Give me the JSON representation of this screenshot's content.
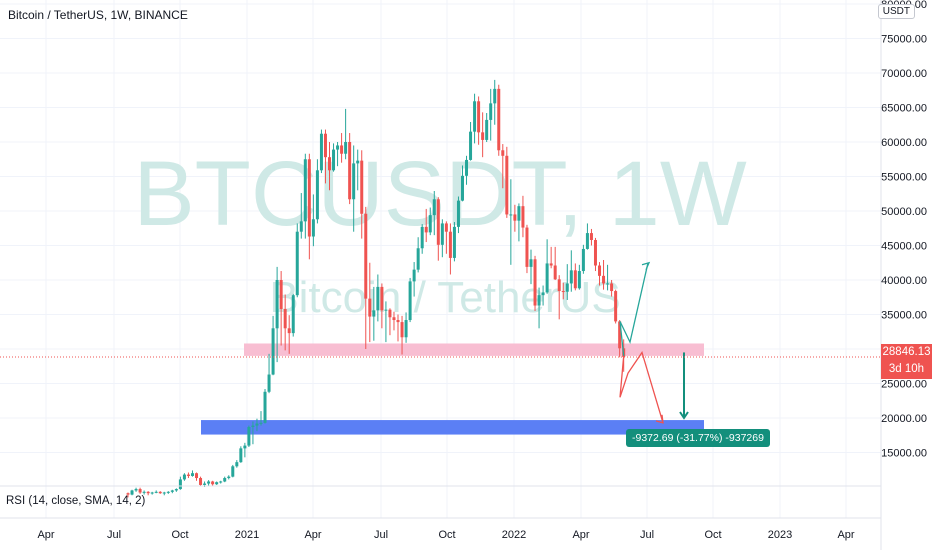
{
  "header": {
    "title": "Bitcoin / TetherUS, 1W, BINANCE",
    "currency": "USDT"
  },
  "watermark": {
    "big": "BTCUSDT, 1W",
    "small": "Bitcoin / TetherUS"
  },
  "indicator": {
    "label": "RSI (14, close, SMA, 14, 2)"
  },
  "price_tag": {
    "price": "28846.13",
    "countdown": "3d 10h"
  },
  "measure_label": "-9372.69 (-31.77%) -937269",
  "colors": {
    "up": "#26a69a",
    "down": "#ef5350",
    "pink_zone": "#f8bbd0",
    "blue_zone": "#5b7ff5",
    "measure": "#138f7c"
  },
  "chart_data": {
    "type": "candlestick",
    "title": "Bitcoin / TetherUS, 1W, BINANCE",
    "ylim": [
      10000,
      80000
    ],
    "y_ticks": [
      80000,
      75000,
      70000,
      65000,
      60000,
      55000,
      50000,
      45000,
      40000,
      35000,
      30000,
      25000,
      20000,
      15000
    ],
    "y_tick_labels": [
      "80000.00",
      "75000.00",
      "70000.00",
      "65000.00",
      "60000.00",
      "55000.00",
      "50000.00",
      "45000.00",
      "40000.00",
      "35000.00",
      "30000.00",
      "25000.00",
      "20000.00",
      "15000.00"
    ],
    "x_ticks": [
      "Apr",
      "Jul",
      "Oct",
      "2021",
      "Apr",
      "Jul",
      "Oct",
      "2022",
      "Apr",
      "Jul",
      "Oct",
      "2023",
      "Apr"
    ],
    "current_price": 28846.13,
    "support_zones": [
      {
        "name": "pink-zone",
        "low": 29000,
        "high": 30800
      },
      {
        "name": "blue-zone",
        "low": 17600,
        "high": 19700
      }
    ],
    "measure": {
      "from": 29500,
      "to": 20000,
      "change": -9372.69,
      "percent": -31.77
    },
    "projection_up": [
      [
        31000,
        34000
      ],
      [
        31500,
        42500
      ]
    ],
    "projection_down": [
      [
        29000,
        23000
      ],
      [
        24500,
        29500
      ],
      [
        24000,
        19300
      ]
    ],
    "candles": [
      [
        9100,
        9200,
        8500,
        8900
      ],
      [
        8900,
        9600,
        8800,
        9500
      ],
      [
        9500,
        9900,
        9300,
        9700
      ],
      [
        9700,
        9900,
        9000,
        9200
      ],
      [
        9200,
        9500,
        8900,
        9300
      ],
      [
        9300,
        9400,
        8800,
        9100
      ],
      [
        9100,
        9300,
        8900,
        9200
      ],
      [
        9200,
        9500,
        9100,
        9300
      ],
      [
        9300,
        9400,
        9000,
        9100
      ],
      [
        9100,
        9300,
        8800,
        9200
      ],
      [
        9200,
        9400,
        9000,
        9300
      ],
      [
        9300,
        9600,
        9100,
        9500
      ],
      [
        9500,
        9800,
        9300,
        9700
      ],
      [
        9700,
        11500,
        9600,
        11100
      ],
      [
        11100,
        12000,
        10900,
        11800
      ],
      [
        11800,
        12100,
        11300,
        11600
      ],
      [
        11600,
        12400,
        11500,
        12000
      ],
      [
        12000,
        12100,
        10900,
        11300
      ],
      [
        11300,
        11500,
        10100,
        10300
      ],
      [
        10300,
        10800,
        10000,
        10500
      ],
      [
        10500,
        11000,
        10200,
        10800
      ],
      [
        10800,
        10900,
        10200,
        10400
      ],
      [
        10400,
        10800,
        10300,
        10700
      ],
      [
        10700,
        10900,
        10500,
        10800
      ],
      [
        10800,
        11500,
        10700,
        11300
      ],
      [
        11300,
        11700,
        11100,
        11500
      ],
      [
        11500,
        13200,
        11400,
        13000
      ],
      [
        13000,
        13900,
        12800,
        13600
      ],
      [
        13600,
        15900,
        13500,
        15600
      ],
      [
        15600,
        16400,
        14300,
        16000
      ],
      [
        16000,
        18900,
        15800,
        18700
      ],
      [
        18700,
        19500,
        16200,
        18900
      ],
      [
        18900,
        19900,
        18100,
        19200
      ],
      [
        19200,
        21000,
        18900,
        19300
      ],
      [
        19300,
        24200,
        19200,
        23800
      ],
      [
        23800,
        29300,
        23600,
        26300
      ],
      [
        26300,
        34800,
        26200,
        33000
      ],
      [
        33000,
        41900,
        28100,
        40000
      ],
      [
        40000,
        41300,
        30500,
        35800
      ],
      [
        35800,
        37900,
        29800,
        33000
      ],
      [
        33000,
        34900,
        29300,
        32300
      ],
      [
        32300,
        38000,
        31800,
        37800
      ],
      [
        37800,
        48200,
        37500,
        47000
      ],
      [
        47000,
        52600,
        46000,
        48500
      ],
      [
        48500,
        58300,
        46000,
        57500
      ],
      [
        57500,
        58300,
        43000,
        46300
      ],
      [
        46300,
        52400,
        44900,
        48800
      ],
      [
        48800,
        57500,
        48200,
        55900
      ],
      [
        55900,
        61800,
        55500,
        61200
      ],
      [
        61200,
        61800,
        54000,
        57800
      ],
      [
        57800,
        60000,
        53000,
        55900
      ],
      [
        55900,
        59800,
        55700,
        58900
      ],
      [
        58900,
        60000,
        56500,
        59500
      ],
      [
        59500,
        61300,
        57000,
        58300
      ],
      [
        58300,
        64800,
        57500,
        60000
      ],
      [
        60000,
        61300,
        51000,
        51700
      ],
      [
        51700,
        59500,
        47000,
        56900
      ],
      [
        56900,
        58900,
        53000,
        57300
      ],
      [
        57300,
        58800,
        46000,
        49600
      ],
      [
        49600,
        50600,
        30000,
        37300
      ],
      [
        37300,
        42500,
        31000,
        34700
      ],
      [
        34700,
        39000,
        31200,
        35600
      ],
      [
        35600,
        40800,
        34000,
        39000
      ],
      [
        39000,
        39500,
        33000,
        35600
      ],
      [
        35600,
        36900,
        31000,
        35700
      ],
      [
        35700,
        35900,
        32000,
        34600
      ],
      [
        34600,
        35400,
        32700,
        34200
      ],
      [
        34200,
        35000,
        31100,
        33900
      ],
      [
        33900,
        34800,
        29200,
        31700
      ],
      [
        31700,
        35300,
        30900,
        34200
      ],
      [
        34200,
        40300,
        33900,
        39800
      ],
      [
        39800,
        42600,
        37600,
        41500
      ],
      [
        41500,
        46200,
        41100,
        44600
      ],
      [
        44600,
        48100,
        43800,
        47700
      ],
      [
        47700,
        50300,
        45500,
        46900
      ],
      [
        46900,
        50500,
        46500,
        49400
      ],
      [
        49400,
        52900,
        46500,
        51700
      ],
      [
        51700,
        52000,
        42800,
        45100
      ],
      [
        45100,
        48800,
        43300,
        48200
      ],
      [
        48200,
        48500,
        43800,
        47000
      ],
      [
        47000,
        48200,
        40800,
        43200
      ],
      [
        43200,
        48400,
        42700,
        47700
      ],
      [
        47700,
        52100,
        46800,
        51500
      ],
      [
        51500,
        56600,
        51400,
        55100
      ],
      [
        55100,
        58000,
        53800,
        57400
      ],
      [
        57400,
        62900,
        57300,
        61500
      ],
      [
        61500,
        67000,
        59800,
        65900
      ],
      [
        65900,
        66600,
        59600,
        61400
      ],
      [
        61400,
        64300,
        57800,
        60300
      ],
      [
        60300,
        64200,
        60000,
        63200
      ],
      [
        63200,
        67700,
        60200,
        65600
      ],
      [
        65600,
        69000,
        62500,
        67700
      ],
      [
        67700,
        68300,
        58000,
        58800
      ],
      [
        58800,
        59700,
        53300,
        58000
      ],
      [
        58000,
        59300,
        49000,
        49500
      ],
      [
        49500,
        54600,
        42200,
        49500
      ],
      [
        49500,
        50900,
        47000,
        48600
      ],
      [
        48600,
        51100,
        45600,
        50700
      ],
      [
        50700,
        52200,
        46200,
        47600
      ],
      [
        47600,
        48000,
        41000,
        41900
      ],
      [
        41900,
        44400,
        39400,
        43000
      ],
      [
        43000,
        43500,
        35500,
        36300
      ],
      [
        36300,
        38900,
        33000,
        37800
      ],
      [
        37800,
        39200,
        36300,
        38200
      ],
      [
        38200,
        45900,
        38000,
        42400
      ],
      [
        42400,
        44800,
        41700,
        42100
      ],
      [
        42100,
        44800,
        40000,
        40100
      ],
      [
        40100,
        40700,
        34300,
        38400
      ],
      [
        38400,
        39600,
        37200,
        38300
      ],
      [
        38300,
        42300,
        37100,
        39500
      ],
      [
        39500,
        44300,
        38300,
        41400
      ],
      [
        41400,
        42400,
        38500,
        38800
      ],
      [
        38800,
        42200,
        38600,
        41300
      ],
      [
        41300,
        45100,
        40900,
        44500
      ],
      [
        44500,
        48200,
        44400,
        46800
      ],
      [
        46800,
        47400,
        45000,
        45800
      ],
      [
        45800,
        46100,
        41300,
        42100
      ],
      [
        42100,
        42600,
        39200,
        40600
      ],
      [
        40600,
        42900,
        38600,
        39500
      ],
      [
        39500,
        42200,
        38500,
        39500
      ],
      [
        39500,
        40000,
        37600,
        38400
      ],
      [
        38400,
        38600,
        33700,
        34000
      ],
      [
        34000,
        34200,
        28800,
        30100
      ],
      [
        30100,
        31400,
        26700,
        28846
      ]
    ]
  }
}
